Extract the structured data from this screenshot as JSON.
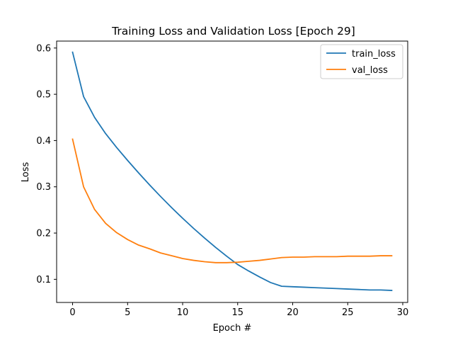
{
  "chart_data": {
    "type": "line",
    "title": "Training Loss and Validation Loss [Epoch 29]",
    "xlabel": "Epoch #",
    "ylabel": "Loss",
    "xlim": [
      -1.45,
      30.45
    ],
    "ylim": [
      0.05,
      0.615
    ],
    "xticks": [
      0,
      5,
      10,
      15,
      20,
      25,
      30
    ],
    "yticks": [
      0.1,
      0.2,
      0.3,
      0.4,
      0.5,
      0.6
    ],
    "xtick_labels": [
      "0",
      "5",
      "10",
      "15",
      "20",
      "25",
      "30"
    ],
    "ytick_labels": [
      "0.1",
      "0.2",
      "0.3",
      "0.4",
      "0.5",
      "0.6"
    ],
    "grid": false,
    "legend_position": "top-right",
    "x": [
      0,
      1,
      2,
      3,
      4,
      5,
      6,
      7,
      8,
      9,
      10,
      11,
      12,
      13,
      14,
      15,
      16,
      17,
      18,
      19,
      20,
      21,
      22,
      23,
      24,
      25,
      26,
      27,
      28,
      29
    ],
    "series": [
      {
        "name": "train_loss",
        "color": "#1f77b4",
        "values": [
          0.591,
          0.495,
          0.45,
          0.415,
          0.385,
          0.357,
          0.33,
          0.304,
          0.279,
          0.255,
          0.232,
          0.21,
          0.189,
          0.169,
          0.15,
          0.132,
          0.118,
          0.105,
          0.093,
          0.085,
          0.084,
          0.083,
          0.082,
          0.081,
          0.08,
          0.079,
          0.078,
          0.077,
          0.077,
          0.076
        ]
      },
      {
        "name": "val_loss",
        "color": "#ff7f0e",
        "values": [
          0.403,
          0.3,
          0.251,
          0.221,
          0.201,
          0.186,
          0.174,
          0.166,
          0.157,
          0.151,
          0.145,
          0.141,
          0.138,
          0.136,
          0.136,
          0.137,
          0.139,
          0.141,
          0.144,
          0.147,
          0.148,
          0.148,
          0.149,
          0.149,
          0.149,
          0.15,
          0.15,
          0.15,
          0.151,
          0.151
        ]
      }
    ]
  }
}
